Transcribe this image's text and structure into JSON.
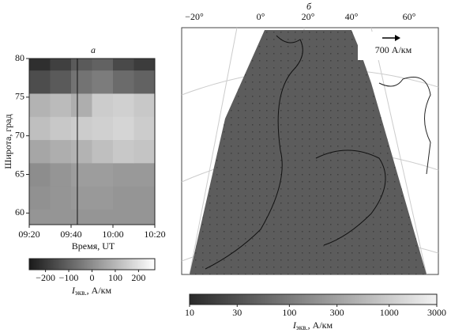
{
  "chart_data": [
    {
      "type": "heatmap",
      "panel_label": "а",
      "ylabel": "Широта, град",
      "xlabel": "Время, UT",
      "x": [
        565,
        575,
        585,
        595,
        605,
        615
      ],
      "y": [
        59,
        62,
        65,
        68,
        71,
        74,
        77,
        80
      ],
      "z": [
        [
          20,
          20,
          20,
          20,
          20,
          20
        ],
        [
          10,
          20,
          30,
          30,
          20,
          20
        ],
        [
          0,
          20,
          40,
          40,
          30,
          30
        ],
        [
          60,
          80,
          90,
          120,
          140,
          130
        ],
        [
          120,
          140,
          150,
          160,
          170,
          150
        ],
        [
          90,
          110,
          80,
          150,
          160,
          140
        ],
        [
          -150,
          -120,
          -60,
          -40,
          -80,
          -100
        ],
        [
          -220,
          -180,
          -120,
          -100,
          -160,
          -190
        ]
      ],
      "xlim": [
        560,
        620
      ],
      "xticks": [
        {
          "value": 560,
          "label": "09:20"
        },
        {
          "value": 580,
          "label": "09:40"
        },
        {
          "value": 600,
          "label": "10:00"
        },
        {
          "value": 620,
          "label": "10:20"
        }
      ],
      "ylim": [
        58.5,
        80
      ],
      "yticks": [
        60,
        65,
        70,
        75,
        80
      ],
      "marker_x": 583,
      "clim": [
        -270,
        270
      ],
      "cticks": [
        {
          "value": -200,
          "label": "−200"
        },
        {
          "value": -100,
          "label": "−100"
        },
        0,
        100,
        200
      ],
      "clabel": {
        "symbol": "I",
        "subscript": "экв.",
        "unit": ", А/км"
      }
    },
    {
      "type": "map",
      "panel_label": "б",
      "lon_labels": [
        "−20°",
        "0°",
        "20°",
        "40°",
        "60°"
      ],
      "reference_label": "700 А/км",
      "clim": [
        10,
        3000
      ],
      "log": true,
      "cticks": [
        10,
        30,
        100,
        300,
        1000,
        3000
      ],
      "clabel": {
        "symbol": "I",
        "subscript": "экв.",
        "unit": ", А/км"
      }
    }
  ]
}
